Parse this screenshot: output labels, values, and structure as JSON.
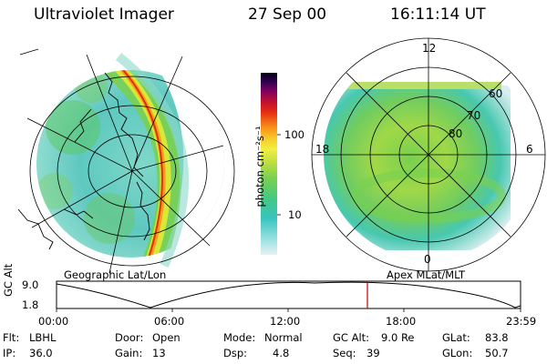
{
  "header": {
    "instrument": "Ultraviolet Imager",
    "date": "27 Sep 00",
    "time": "16:11:14 UT"
  },
  "left_panel": {
    "caption": "Geographic Lat/Lon"
  },
  "right_panel": {
    "caption": "Apex MLat/MLT",
    "mlt_labels": {
      "top": "12",
      "left": "18",
      "right": "6",
      "bottom": "0"
    },
    "lat_labels": [
      "60",
      "70",
      "80"
    ]
  },
  "colorbar": {
    "unit_label": "photon cm⁻²s⁻¹",
    "tick_labels": [
      "100",
      "10"
    ],
    "colors": [
      "#d8eef0",
      "#3cc8c8",
      "#40c890",
      "#78d050",
      "#c8e040",
      "#f0f040",
      "#f8d028",
      "#f8a018",
      "#f06010",
      "#d81818",
      "#b00040",
      "#700060",
      "#280050",
      "#000010"
    ]
  },
  "altitude_plot": {
    "ylabel": "GC Alt",
    "y_ticks": [
      "9.0",
      "1.8"
    ],
    "x_ticks": [
      "00:00",
      "06:00",
      "12:00",
      "18:00",
      "23:59"
    ],
    "current_time_marker": "16:11",
    "marker_color": "#c00000"
  },
  "info": {
    "filter": {
      "label": "Flt:",
      "value": "LBHL"
    },
    "ip": {
      "label": "IP:",
      "value": "36.0"
    },
    "door": {
      "label": "Door:",
      "value": "Open"
    },
    "gain": {
      "label": "Gain:",
      "value": "13"
    },
    "mode": {
      "label": "Mode:",
      "value": "Normal"
    },
    "dsp": {
      "label": "Dsp:",
      "value": "4.8"
    },
    "gc_alt": {
      "label": "GC Alt:",
      "value": "9.0 Re"
    },
    "seq": {
      "label": "Seq:",
      "value": "39"
    },
    "glat": {
      "label": "GLat:",
      "value": "83.8"
    },
    "glon": {
      "label": "GLon:",
      "value": "50.7"
    }
  }
}
